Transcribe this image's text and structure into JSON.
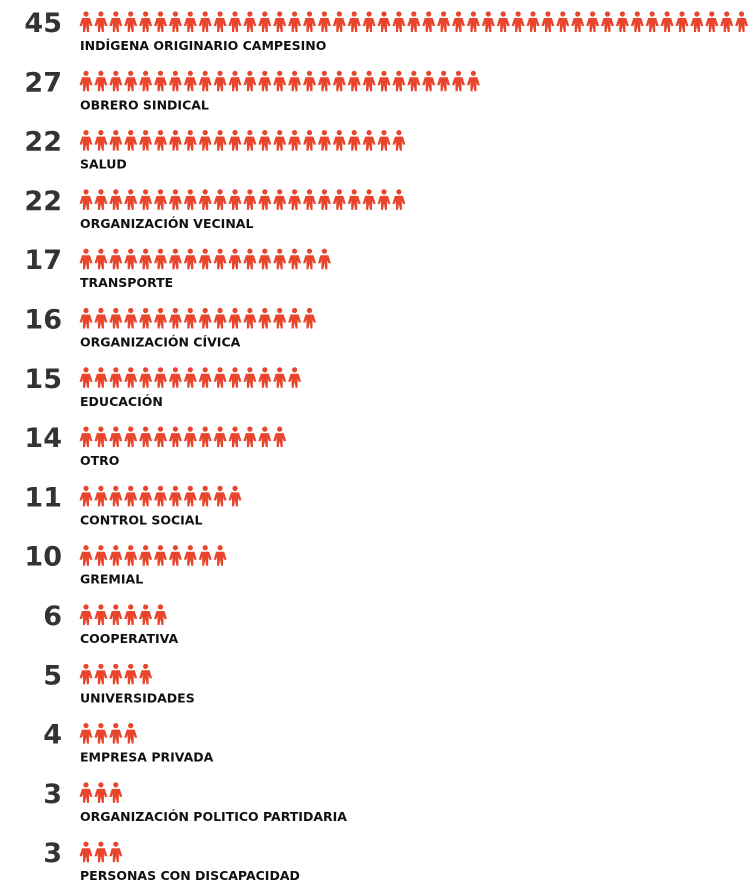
{
  "chart_data": {
    "type": "pictogram",
    "color": "#e8452c",
    "categories": [
      "INDÍGENA ORIGINARIO CAMPESINO",
      "OBRERO SINDICAL",
      "SALUD",
      "ORGANIZACIÓN VECINAL",
      "TRANSPORTE",
      "ORGANIZACIÓN CÍVICA",
      "EDUCACIÓN",
      "OTRO",
      "CONTROL SOCIAL",
      "GREMIAL",
      "COOPERATIVA",
      "UNIVERSIDADES",
      "EMPRESA PRIVADA",
      "ORGANIZACIÓN POLITICO PARTIDARIA",
      "PERSONAS CON DISCAPACIDAD"
    ],
    "values": [
      45,
      27,
      22,
      22,
      17,
      16,
      15,
      14,
      11,
      10,
      6,
      5,
      4,
      3,
      3
    ]
  }
}
